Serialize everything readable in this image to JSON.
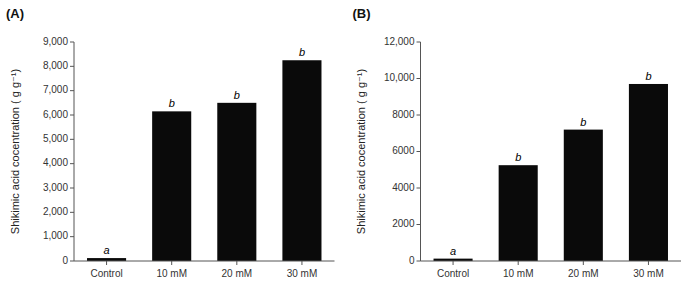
{
  "chart_data": [
    {
      "type": "bar",
      "title": "(A)",
      "categories": [
        "Control",
        "10 mM",
        "20 mM",
        "30 mM"
      ],
      "values": [
        120,
        6150,
        6500,
        8250
      ],
      "annotations": [
        "a",
        "b",
        "b",
        "b"
      ],
      "color": "#0a0a0a",
      "ylim": [
        0,
        9000
      ],
      "yticks": [
        0,
        {
          "value": 1000,
          "label": "1,000"
        },
        {
          "value": 2000,
          "label": "2,000"
        },
        {
          "value": 3000,
          "label": "3,000"
        },
        {
          "value": 4000,
          "label": "4,000"
        },
        {
          "value": 5000,
          "label": "5,000"
        },
        {
          "value": 6000,
          "label": "6,000"
        },
        {
          "value": 7000,
          "label": "7,000"
        },
        {
          "value": 8000,
          "label": "8,000"
        },
        {
          "value": 9000,
          "label": "9,000"
        }
      ],
      "ylabel": "Shikimic acid cocentration ( g g⁻¹)",
      "grid": false
    },
    {
      "type": "bar",
      "title": "(B)",
      "categories": [
        "Control",
        "10 mM",
        "20 mM",
        "30 mM"
      ],
      "values": [
        130,
        5250,
        7200,
        9700
      ],
      "annotations": [
        "a",
        "b",
        "b",
        "b"
      ],
      "color": "#0a0a0a",
      "ylim": [
        0,
        12000
      ],
      "yticks": [
        0,
        2000,
        4000,
        6000,
        8000,
        {
          "value": 10000,
          "label": "10,000"
        },
        {
          "value": 12000,
          "label": "12,000"
        }
      ],
      "ylabel": "Shikimic acid cocentration ( g g⁻¹)",
      "grid": false
    }
  ]
}
